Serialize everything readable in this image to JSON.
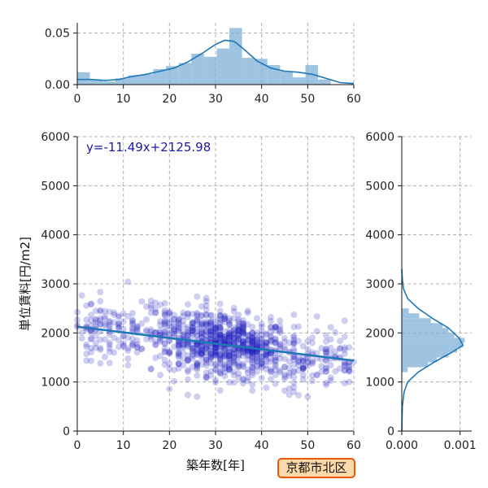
{
  "chart_data": {
    "type": "scatter",
    "main": {
      "xlabel": "築年数[年]",
      "ylabel": "単位賃料[円/m2]",
      "xlim": [
        0,
        60
      ],
      "ylim": [
        0,
        6000
      ],
      "xticks": [
        0,
        10,
        20,
        30,
        40,
        50,
        60
      ],
      "yticks": [
        0,
        1000,
        2000,
        3000,
        4000,
        5000,
        6000
      ],
      "grid": true,
      "point_color": "#2020c0",
      "regression": {
        "label": "y=-11.49x+2125.98",
        "slope": -11.49,
        "intercept": 2125.98,
        "color": "#1f77b4",
        "label_color": "#1a1aa6"
      }
    },
    "top_histogram": {
      "xlim": [
        0,
        60
      ],
      "ylim": [
        0,
        0.06
      ],
      "yticks": [
        0.0,
        0.05
      ],
      "yticklabels": [
        "0.00",
        "0.05"
      ],
      "xticks": [
        0,
        10,
        20,
        30,
        40,
        50,
        60
      ],
      "bin_width": 2.75,
      "bin_start": 0,
      "densities": [
        0.012,
        0.005,
        0.003,
        0.006,
        0.009,
        0.01,
        0.015,
        0.018,
        0.021,
        0.03,
        0.027,
        0.035,
        0.055,
        0.026,
        0.025,
        0.019,
        0.013,
        0.007,
        0.019,
        0.005
      ],
      "kde_x": [
        0,
        3,
        6,
        9,
        12,
        15,
        18,
        21,
        24,
        27,
        30,
        32,
        34,
        36,
        39,
        42,
        45,
        48,
        51,
        54,
        57,
        60
      ],
      "kde_y": [
        0.005,
        0.005,
        0.004,
        0.005,
        0.008,
        0.01,
        0.013,
        0.016,
        0.022,
        0.03,
        0.039,
        0.043,
        0.042,
        0.035,
        0.023,
        0.016,
        0.013,
        0.012,
        0.01,
        0.006,
        0.002,
        0.001
      ],
      "color": "#7fb0d8",
      "kde_color": "#1f77b4"
    },
    "right_histogram": {
      "ylim": [
        0,
        6000
      ],
      "xlim": [
        0,
        0.0012
      ],
      "xticks": [
        0,
        0.001
      ],
      "xticklabels": [
        "0.000",
        "0.001"
      ],
      "yticks": [
        0,
        1000,
        2000,
        3000,
        4000,
        5000,
        6000
      ],
      "bins_low": [
        1200,
        1300,
        1400,
        1500,
        1600,
        1700,
        1800,
        1900,
        2000,
        2100,
        2200,
        2300,
        2400
      ],
      "densities": [
        0.0001,
        0.00045,
        0.0006,
        0.0008,
        0.00095,
        0.00105,
        0.00108,
        0.0009,
        0.0008,
        0.0007,
        0.0005,
        0.0003,
        0.00012
      ],
      "kde_y": [
        0,
        500,
        800,
        1000,
        1200,
        1400,
        1600,
        1750,
        1900,
        2100,
        2300,
        2500,
        2700,
        2900,
        3100,
        3300
      ],
      "kde_x": [
        0.0,
        1e-05,
        4e-05,
        0.0001,
        0.00028,
        0.00055,
        0.00085,
        0.00105,
        0.00098,
        0.0008,
        0.00052,
        0.00028,
        0.0001,
        3e-05,
        1e-05,
        0.0
      ],
      "color": "#7fb0d8",
      "kde_color": "#1f77b4"
    }
  },
  "badge": {
    "text": "京都市北区"
  }
}
